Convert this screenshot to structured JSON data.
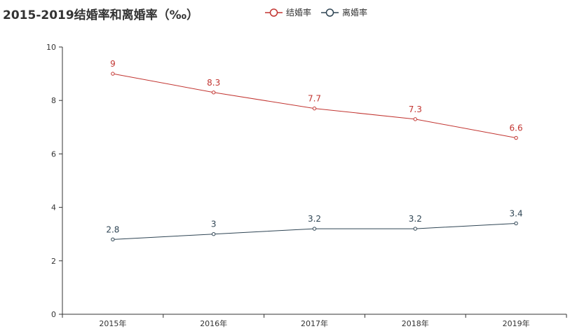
{
  "chart_data": {
    "type": "line",
    "title": "2015-2019结婚率和离婚率（‰）",
    "categories": [
      "2015年",
      "2016年",
      "2017年",
      "2018年",
      "2019年"
    ],
    "ylim": [
      0,
      10
    ],
    "yticks": [
      0,
      2,
      4,
      6,
      8,
      10
    ],
    "grid": false,
    "legend_position": "top-center",
    "data_labels": true,
    "series": [
      {
        "name": "结婚率",
        "values": [
          9,
          8.3,
          7.7,
          7.3,
          6.6
        ],
        "labels": [
          "9",
          "8.3",
          "7.7",
          "7.3",
          "6.6"
        ],
        "color": "#c23531"
      },
      {
        "name": "离婚率",
        "values": [
          2.8,
          3,
          3.2,
          3.2,
          3.4
        ],
        "labels": [
          "2.8",
          "3",
          "3.2",
          "3.2",
          "3.4"
        ],
        "color": "#2f4554"
      }
    ],
    "axis_color": "#333333",
    "text_color": "#333333"
  }
}
